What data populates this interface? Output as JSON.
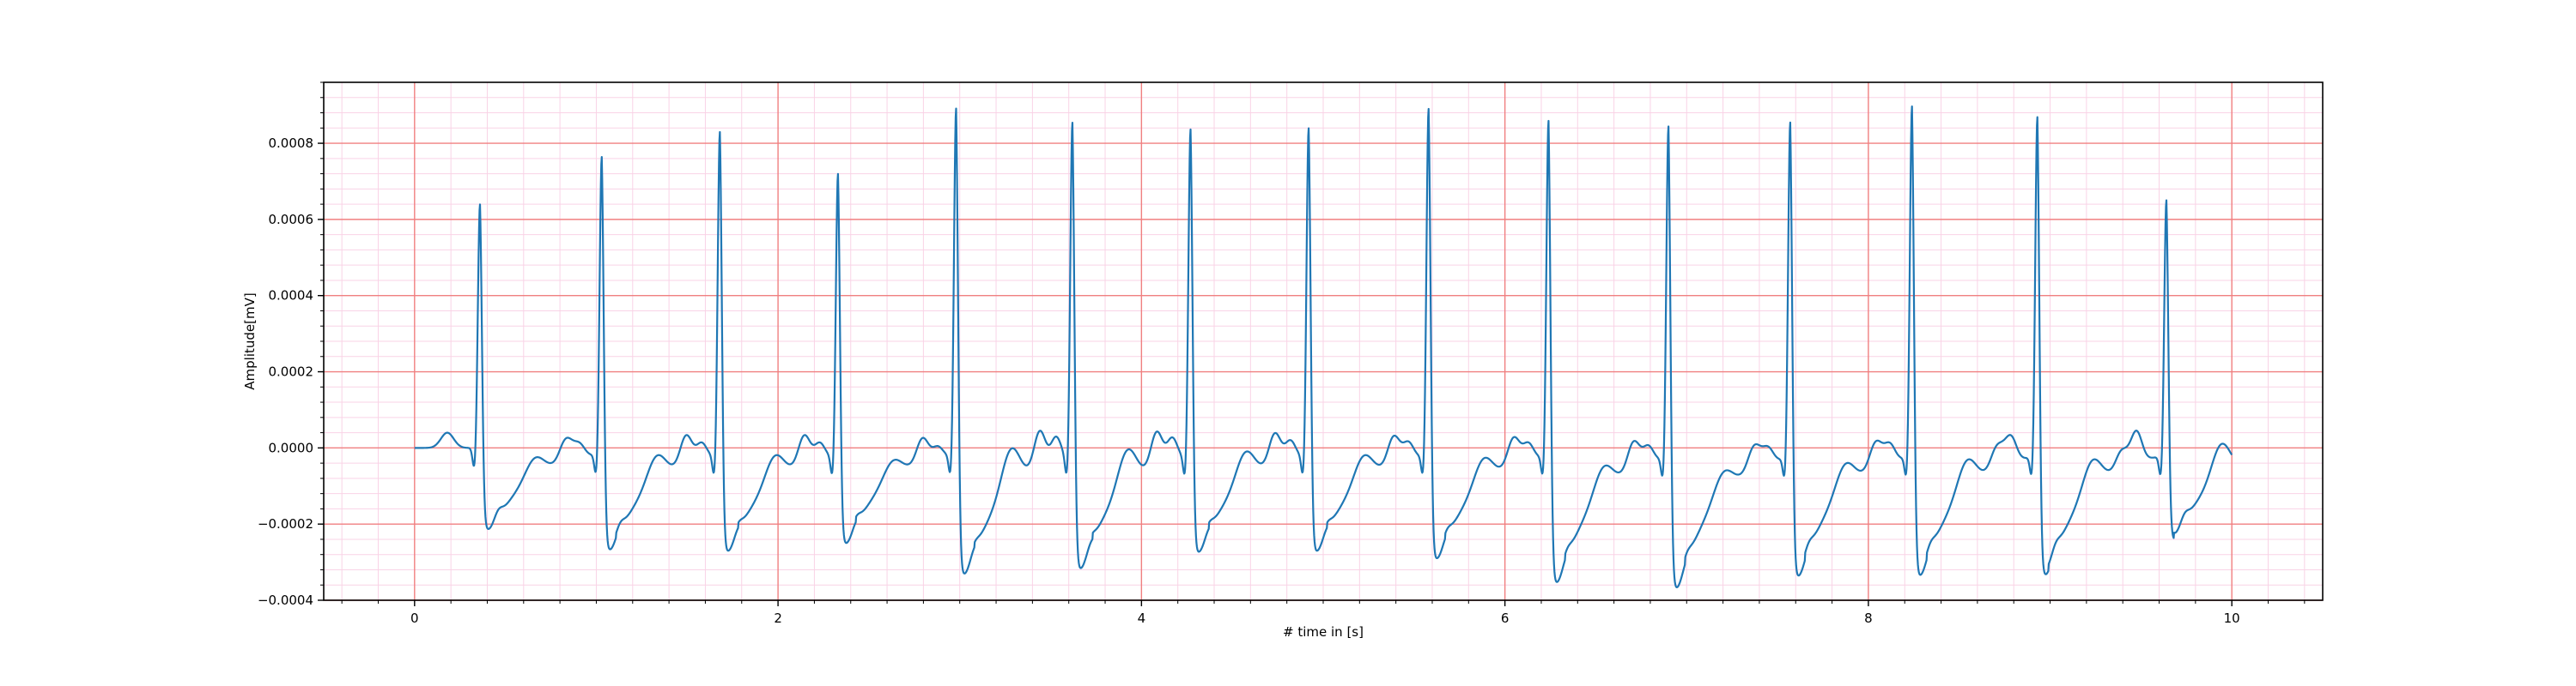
{
  "chart_data": {
    "type": "line",
    "title": "",
    "xlabel": "# time in [s]",
    "ylabel": "Amplitude[mV]",
    "xlim": [
      -0.5,
      10.5
    ],
    "ylim": [
      -0.0004,
      0.00096
    ],
    "x_ticks": [
      0,
      2,
      4,
      6,
      8,
      10
    ],
    "x_tick_labels": [
      "0",
      "2",
      "4",
      "6",
      "8",
      "10"
    ],
    "y_ticks": [
      -0.0004,
      -0.0002,
      0.0,
      0.0002,
      0.0004,
      0.0006,
      0.0008
    ],
    "y_tick_labels": [
      "−0.0004",
      "−0.0002",
      "0.0000",
      "0.0002",
      "0.0004",
      "0.0006",
      "0.0008"
    ],
    "grid": {
      "major": true,
      "minor": true,
      "major_color": "#f08080",
      "minor_color": "#f9d3e6"
    },
    "legend": "none",
    "colors": {
      "line": "#1f77b4",
      "major_grid": "#f08080",
      "minor_grid": "#f9d3e6"
    },
    "series": [
      {
        "beat_times_s": [
          0.36,
          1.03,
          1.68,
          2.33,
          2.98,
          3.62,
          4.27,
          4.92,
          5.58,
          6.24,
          6.9,
          7.57,
          8.24,
          8.93,
          9.64
        ],
        "r_peak_mV": [
          0.00064,
          0.00078,
          0.00085,
          0.00074,
          0.00091,
          0.00088,
          0.00086,
          0.00086,
          0.00091,
          0.00088,
          0.00087,
          0.00088,
          0.00092,
          0.00089,
          0.00067
        ],
        "s_trough_mV": [
          -0.00021,
          -0.00025,
          -0.00025,
          -0.00023,
          -0.00031,
          -0.00029,
          -0.00025,
          -0.00025,
          -0.00027,
          -0.00033,
          -0.00034,
          -0.00031,
          -0.00031,
          -0.00031,
          -0.00022
        ],
        "t_wave_mV": [
          5e-05,
          7e-05,
          7e-05,
          5e-05,
          0.00011,
          0.0001,
          8e-05,
          7e-05,
          7e-05,
          7e-05,
          6e-05,
          7e-05,
          8e-05,
          8e-05,
          9e-05
        ],
        "x_range_s": [
          0.0,
          10.0
        ],
        "start_value_mV": 0.0
      }
    ]
  }
}
